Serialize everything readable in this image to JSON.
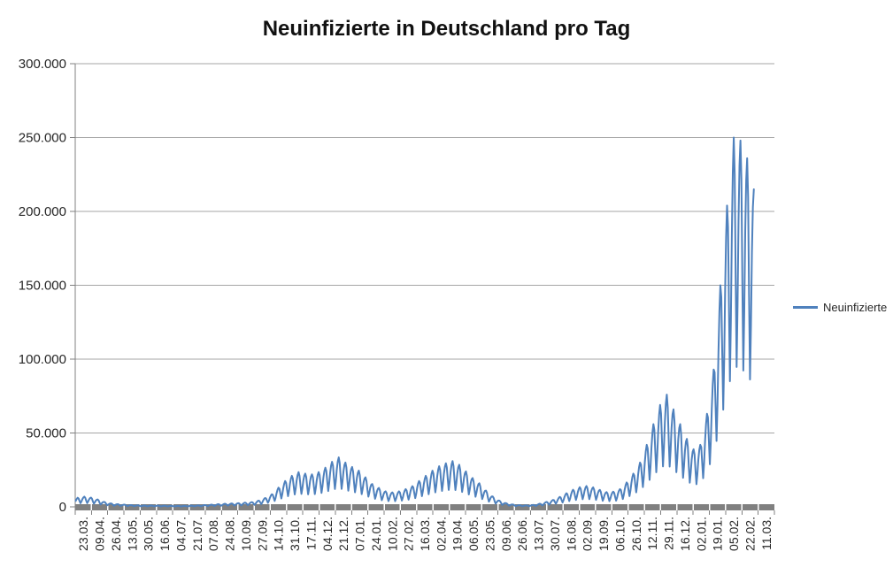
{
  "window": {
    "background": "#ffffff"
  },
  "chart_data": {
    "type": "line",
    "title": "Neuinfizierte in Deutschland pro Tag",
    "legend": {
      "label": "Neuinfizierte",
      "position": "right"
    },
    "colors": {
      "series": "#4F81BD",
      "gridline": "#A6A6A6",
      "axis": "#808080",
      "tick_text": "#262626",
      "title_text": "#111111"
    },
    "y_axis": {
      "min": 0,
      "max": 300000,
      "step": 50000,
      "tick_labels": [
        "0",
        "50.000",
        "100.000",
        "150.000",
        "200.000",
        "250.000",
        "300.000"
      ],
      "number_format": "de-DE"
    },
    "x_axis": {
      "tick_labels": [
        "23.03.",
        "09.04.",
        "26.04.",
        "13.05.",
        "30.05.",
        "16.06.",
        "04.07.",
        "21.07.",
        "07.08.",
        "24.08.",
        "10.09.",
        "27.09.",
        "14.10.",
        "31.10.",
        "17.11.",
        "04.12.",
        "21.12.",
        "07.01.",
        "24.01.",
        "10.02.",
        "27.02.",
        "16.03.",
        "02.04.",
        "19.04.",
        "06.05.",
        "23.05.",
        "09.06.",
        "26.06.",
        "13.07.",
        "30.07.",
        "16.08.",
        "02.09.",
        "19.09.",
        "06.10.",
        "26.10.",
        "12.11.",
        "29.11.",
        "16.12.",
        "02.01.",
        "19.01.",
        "05.02.",
        "22.02.",
        "11.03."
      ],
      "days_per_tick": 17,
      "total_days": 731
    },
    "series": [
      {
        "name": "Neuinfizierte",
        "color": "#4F81BD",
        "last_day": 709,
        "weekly_profile": [
          0.38,
          0.55,
          0.78,
          0.93,
          1.0,
          0.9,
          0.62
        ],
        "profile_phase": 2,
        "envelope_weekly_peaks": [
          [
            0,
            5200
          ],
          [
            2,
            6200
          ],
          [
            9,
            6900
          ],
          [
            16,
            6300
          ],
          [
            23,
            5000
          ],
          [
            30,
            3300
          ],
          [
            37,
            2300
          ],
          [
            44,
            1800
          ],
          [
            58,
            1200
          ],
          [
            72,
            900
          ],
          [
            86,
            850
          ],
          [
            100,
            700
          ],
          [
            114,
            650
          ],
          [
            128,
            950
          ],
          [
            142,
            1500
          ],
          [
            156,
            2100
          ],
          [
            170,
            2500
          ],
          [
            184,
            3200
          ],
          [
            191,
            4200
          ],
          [
            198,
            6000
          ],
          [
            205,
            8500
          ],
          [
            212,
            13000
          ],
          [
            219,
            17500
          ],
          [
            226,
            21000
          ],
          [
            233,
            23500
          ],
          [
            240,
            22500
          ],
          [
            247,
            22000
          ],
          [
            254,
            23500
          ],
          [
            261,
            26500
          ],
          [
            268,
            30500
          ],
          [
            275,
            33500
          ],
          [
            282,
            30000
          ],
          [
            289,
            27000
          ],
          [
            296,
            24500
          ],
          [
            303,
            20000
          ],
          [
            310,
            15500
          ],
          [
            317,
            12800
          ],
          [
            324,
            10500
          ],
          [
            331,
            9800
          ],
          [
            338,
            10500
          ],
          [
            345,
            12000
          ],
          [
            352,
            14000
          ],
          [
            359,
            17500
          ],
          [
            366,
            21000
          ],
          [
            373,
            24500
          ],
          [
            380,
            27500
          ],
          [
            387,
            29500
          ],
          [
            394,
            31000
          ],
          [
            401,
            28500
          ],
          [
            408,
            24000
          ],
          [
            415,
            19500
          ],
          [
            422,
            16000
          ],
          [
            429,
            11000
          ],
          [
            436,
            7000
          ],
          [
            443,
            4200
          ],
          [
            450,
            2500
          ],
          [
            457,
            1600
          ],
          [
            464,
            1100
          ],
          [
            471,
            1000
          ],
          [
            478,
            1300
          ],
          [
            485,
            2100
          ],
          [
            492,
            3300
          ],
          [
            499,
            4700
          ],
          [
            506,
            6700
          ],
          [
            513,
            9200
          ],
          [
            520,
            11600
          ],
          [
            527,
            13300
          ],
          [
            534,
            14100
          ],
          [
            541,
            13200
          ],
          [
            548,
            11500
          ],
          [
            555,
            10000
          ],
          [
            562,
            10300
          ],
          [
            569,
            12000
          ],
          [
            576,
            16500
          ],
          [
            583,
            22500
          ],
          [
            590,
            30000
          ],
          [
            597,
            42000
          ],
          [
            604,
            56000
          ],
          [
            611,
            69000
          ],
          [
            618,
            76000
          ],
          [
            625,
            66000
          ],
          [
            632,
            56000
          ],
          [
            639,
            46000
          ],
          [
            646,
            39000
          ],
          [
            653,
            42000
          ],
          [
            660,
            63000
          ],
          [
            667,
            93000
          ],
          [
            674,
            150000
          ],
          [
            681,
            204000
          ],
          [
            688,
            250000
          ],
          [
            695,
            248000
          ],
          [
            702,
            236000
          ],
          [
            709,
            215000
          ]
        ]
      }
    ]
  }
}
